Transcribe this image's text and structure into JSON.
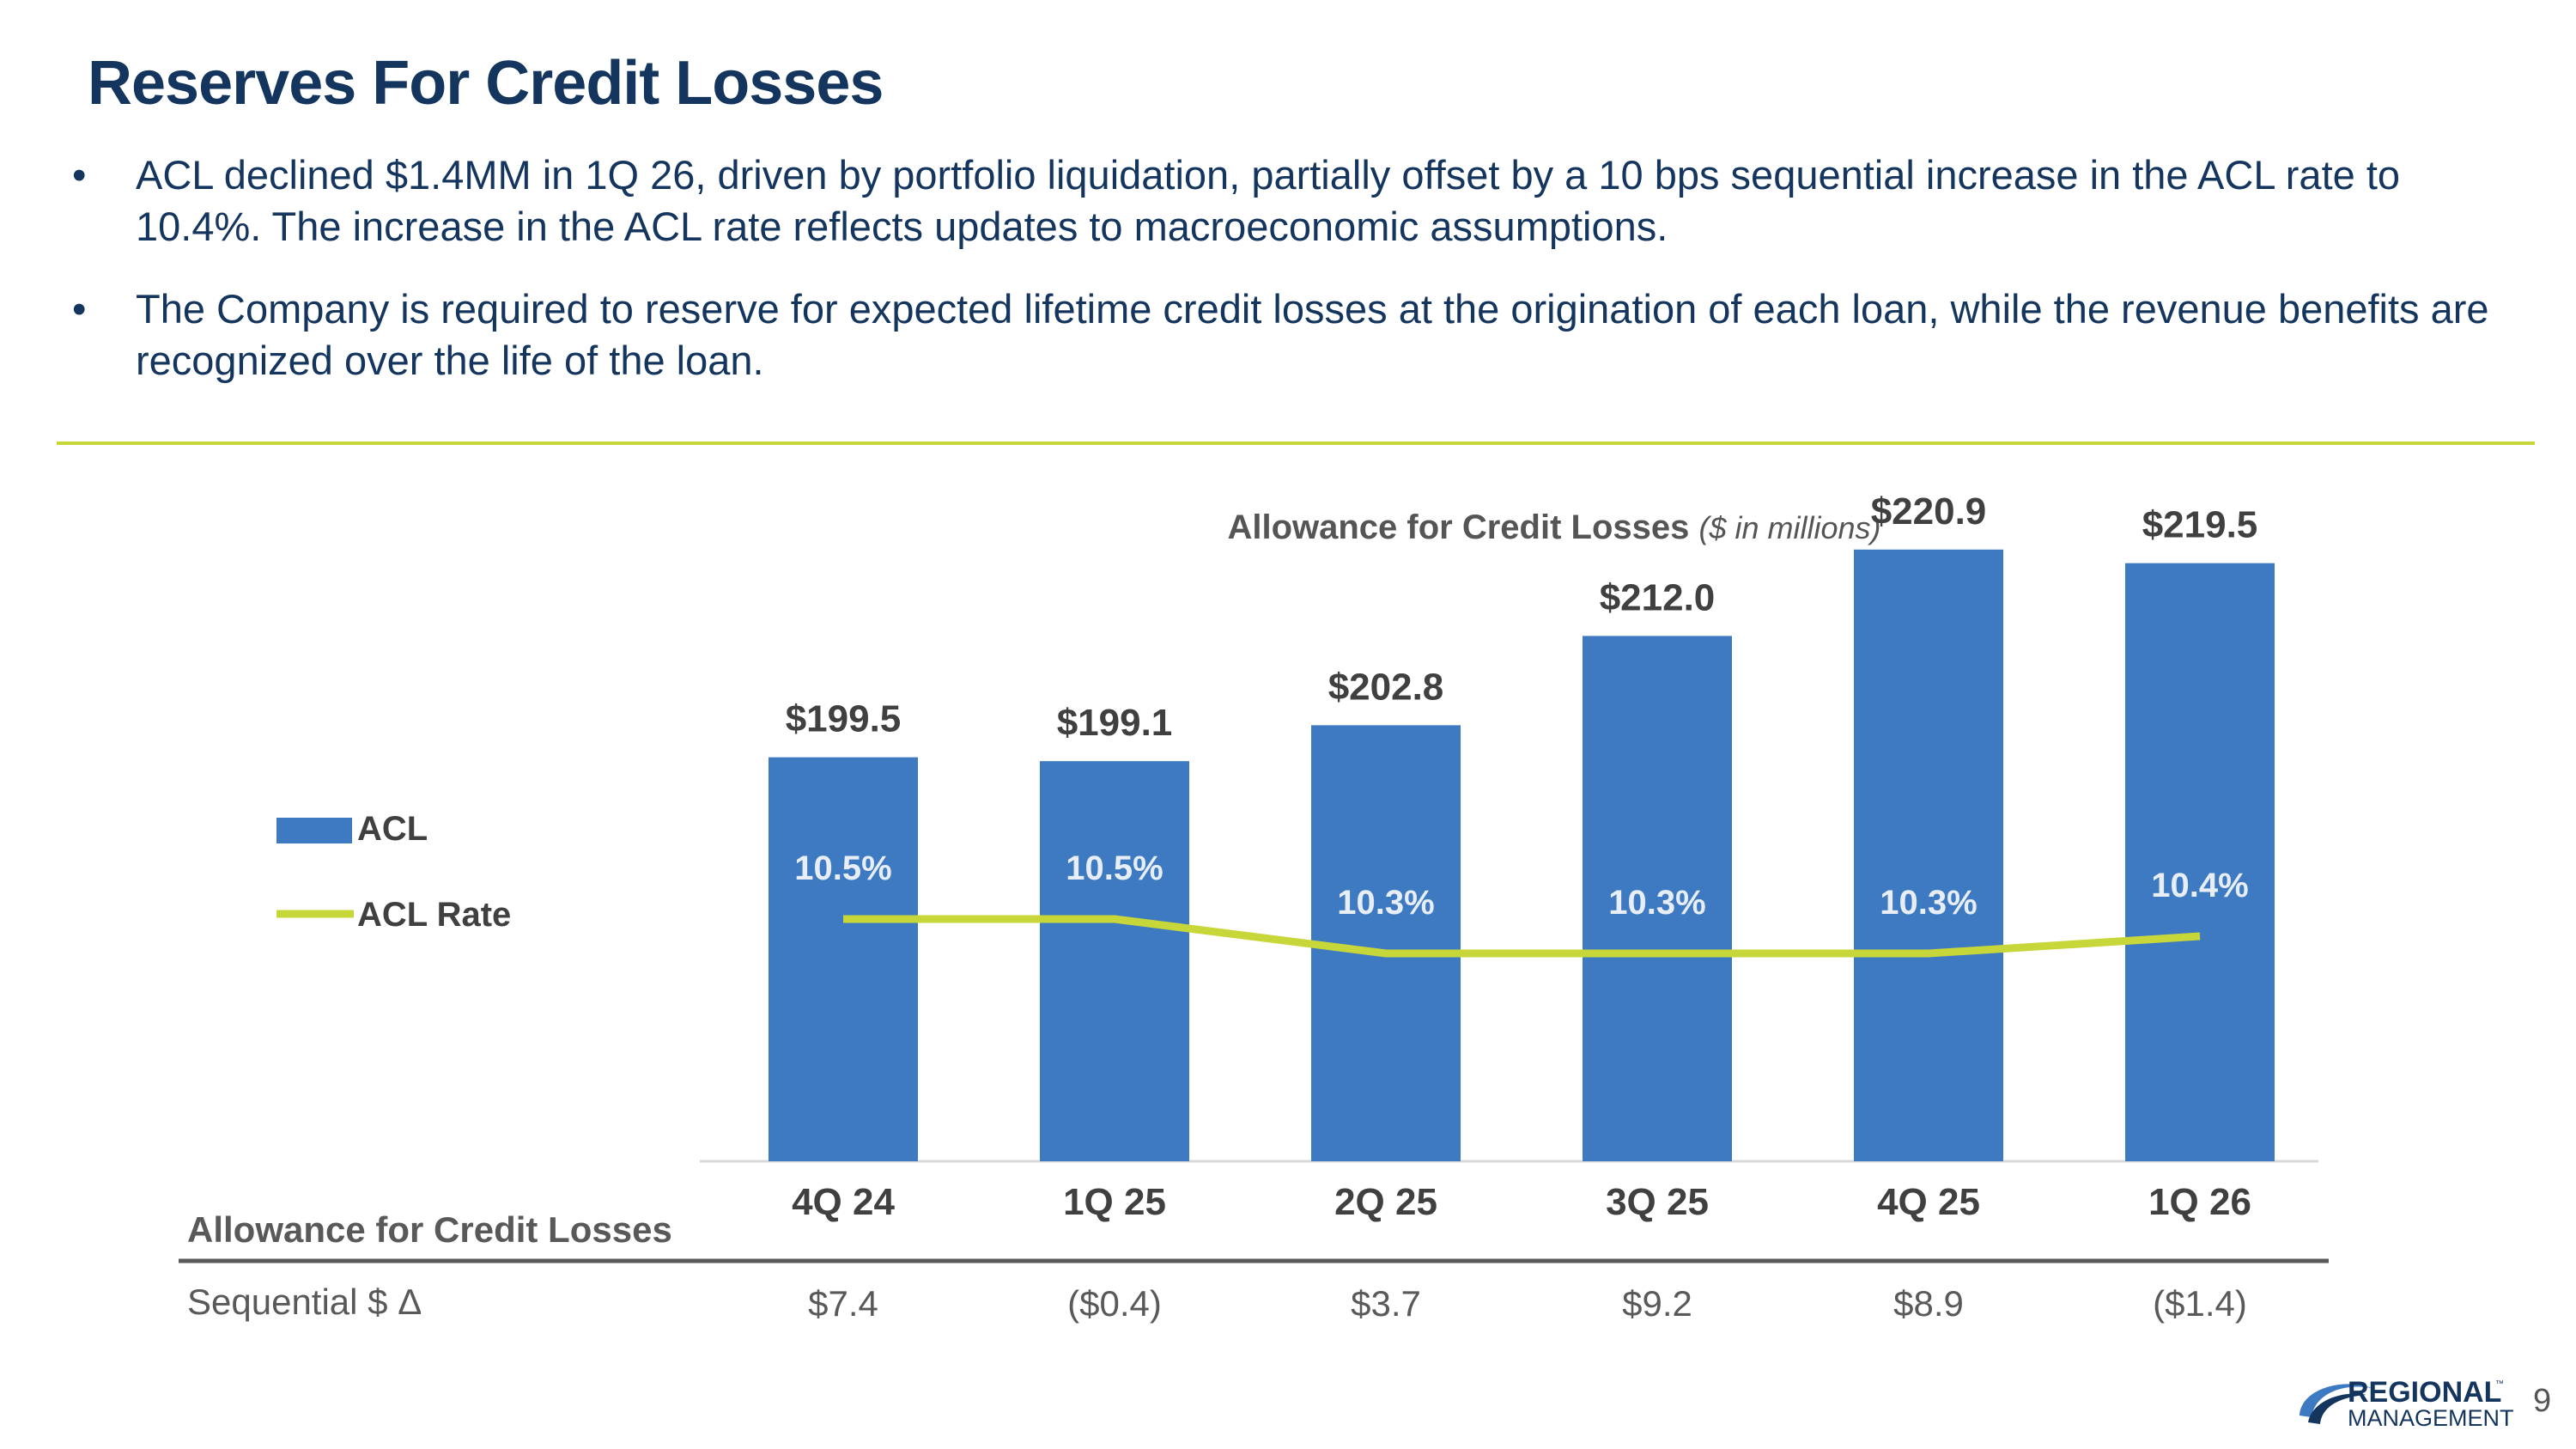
{
  "title": "Reserves For Credit Losses",
  "bullets": [
    "ACL declined $1.4MM in 1Q 26, driven by portfolio liquidation, partially offset by a 10 bps sequential increase in the ACL rate to 10.4%. The increase in the ACL rate reflects updates to macroeconomic assumptions.",
    "The Company is required to reserve for expected lifetime credit losses at the origination of each loan, while the revenue benefits are recognized over the life of the loan."
  ],
  "bullet_glyph": "•",
  "colors": {
    "title": "#14355e",
    "bar": "#3e7ac1",
    "line": "#c7d638",
    "rule": "#c7d638",
    "text_gray": "#555555"
  },
  "chart_data": {
    "type": "bar",
    "title": "Allowance for Credit Losses",
    "subtitle": "($ in millions)",
    "categories": [
      "4Q 24",
      "1Q 25",
      "2Q 25",
      "3Q 25",
      "4Q 25",
      "1Q 26"
    ],
    "series": [
      {
        "name": "ACL",
        "type": "bar",
        "values": [
          199.5,
          199.1,
          202.8,
          212.0,
          220.9,
          219.5
        ],
        "labels": [
          "$199.5",
          "$199.1",
          "$202.8",
          "$212.0",
          "$220.9",
          "$219.5"
        ]
      },
      {
        "name": "ACL Rate",
        "type": "line",
        "values": [
          10.5,
          10.5,
          10.3,
          10.3,
          10.3,
          10.4
        ],
        "labels": [
          "10.5%",
          "10.5%",
          "10.3%",
          "10.3%",
          "10.3%",
          "10.4%"
        ]
      }
    ],
    "legend_position": "left",
    "grid": false
  },
  "table": {
    "header_label": "Allowance for Credit Losses",
    "row_label": "Sequential $ Δ",
    "values": [
      "$7.4",
      "($0.4)",
      "$3.7",
      "$9.2",
      "$8.9",
      "($1.4)"
    ]
  },
  "logo": {
    "line1": "REGIONAL",
    "line2": "MANAGEMENT",
    "tm": "™"
  },
  "page_number": "9"
}
